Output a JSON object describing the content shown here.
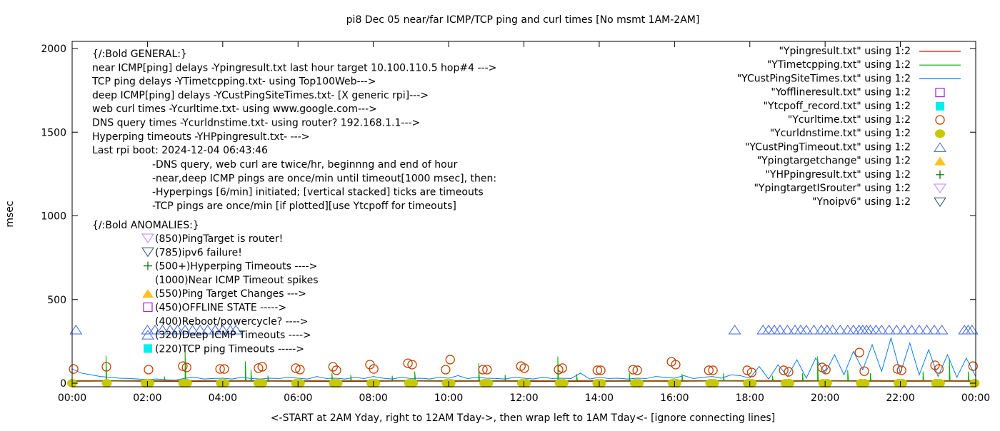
{
  "chart_data": {
    "type": "line",
    "title": "pi8 Dec 05  near/far ICMP/TCP ping and curl times [No msmt 1AM-2AM]",
    "xlabel": "<-START at 2AM Yday, right to 12AM Tday->, then wrap left to 1AM Tday<- [ignore connecting lines]",
    "ylabel": "msec",
    "xlim": [
      0,
      24
    ],
    "ylim": [
      0,
      2000
    ],
    "xticks": [
      "00:00",
      "02:00",
      "04:00",
      "06:00",
      "08:00",
      "10:00",
      "12:00",
      "14:00",
      "16:00",
      "18:00",
      "20:00",
      "22:00",
      "00:00"
    ],
    "yticks": [
      0,
      500,
      1000,
      1500,
      2000
    ],
    "grid": false,
    "legend_placement": "top-right",
    "colors": {
      "red": "#ff0000",
      "green": "#00b000",
      "blue": "#0a7cf0",
      "purple": "#a020f0",
      "cyan": "#00eeee",
      "curl": "#c04000",
      "dns": "#c8c800",
      "custtimeout": "#4169e1",
      "orange": "#ffc020",
      "hp": "#006400",
      "lavender": "#c080ff",
      "navy": "#2f4f6f"
    },
    "series": [
      {
        "name": "\"Ypingresult.txt\" using 1:2",
        "marker": "line",
        "color": "#ff0000",
        "x_step_hours": 1,
        "values": [
          12,
          14,
          12,
          11,
          12,
          13,
          12,
          11,
          12,
          14,
          12,
          13,
          12,
          11,
          12,
          13,
          12,
          14,
          13,
          12,
          14,
          13,
          12,
          13,
          12
        ]
      },
      {
        "name": "\"YTimetcpping.txt\" using 1:2",
        "marker": "line",
        "color": "#00b000",
        "baseline": 16,
        "spikes": [
          [
            0.9,
            165
          ],
          [
            2.45,
            40
          ],
          [
            3.0,
            190
          ],
          [
            4.6,
            130
          ],
          [
            4.75,
            80
          ],
          [
            5.2,
            45
          ],
          [
            6.9,
            60
          ],
          [
            7.4,
            50
          ],
          [
            8.5,
            45
          ],
          [
            9.1,
            70
          ],
          [
            10.8,
            120
          ],
          [
            11.5,
            50
          ],
          [
            12.9,
            160
          ],
          [
            13.4,
            55
          ],
          [
            14.8,
            60
          ],
          [
            16.2,
            55
          ],
          [
            17.3,
            60
          ],
          [
            18.6,
            45
          ],
          [
            19.4,
            60
          ],
          [
            19.8,
            160
          ],
          [
            20.6,
            80
          ],
          [
            21.2,
            60
          ],
          [
            22.6,
            70
          ],
          [
            23.3,
            150
          ],
          [
            23.8,
            70
          ]
        ]
      },
      {
        "name": "\"YCustPingSiteTimes.txt\" using 1:2",
        "marker": "line",
        "color": "#0a7cf0",
        "x_step_hours": 0.25,
        "values": [
          85,
          60,
          50,
          40,
          35,
          30,
          28,
          25,
          22,
          25,
          20,
          18,
          30,
          35,
          25,
          28,
          30,
          25,
          35,
          28,
          25,
          30,
          28,
          35,
          30,
          25,
          40,
          28,
          30,
          25,
          35,
          28,
          40,
          30,
          25,
          35,
          28,
          30,
          25,
          35,
          30,
          45,
          28,
          35,
          30,
          28,
          25,
          35,
          30,
          25,
          35,
          28,
          30,
          28,
          60,
          25,
          35,
          28,
          30,
          25,
          30,
          28,
          40,
          35,
          30,
          45,
          28,
          35,
          40,
          30,
          50,
          45,
          30,
          100,
          25,
          110,
          40,
          140,
          30,
          150,
          60,
          170,
          50,
          190,
          80,
          230,
          70,
          270,
          60,
          240,
          50,
          200,
          40,
          170,
          35,
          150,
          40
        ]
      },
      {
        "name": "\"Yofflineresult.txt\" using 1:2",
        "marker": "open-square",
        "color": "#a020f0",
        "points": []
      },
      {
        "name": "\"Ytcpoff_record.txt\" using 1:2",
        "marker": "filled-square",
        "color": "#00eeee",
        "points": []
      },
      {
        "name": "\"Ycurltime.txt\" using 1:2",
        "marker": "open-circle",
        "color": "#c04000",
        "points": [
          [
            0.04,
            85
          ],
          [
            0.91,
            98
          ],
          [
            2.03,
            81
          ],
          [
            2.94,
            102
          ],
          [
            3.04,
            94
          ],
          [
            3.93,
            85
          ],
          [
            4.04,
            85
          ],
          [
            4.95,
            90
          ],
          [
            5.05,
            98
          ],
          [
            5.94,
            90
          ],
          [
            6.05,
            81
          ],
          [
            6.93,
            98
          ],
          [
            7.02,
            77
          ],
          [
            7.91,
            111
          ],
          [
            8.01,
            85
          ],
          [
            8.92,
            119
          ],
          [
            9.03,
            111
          ],
          [
            9.92,
            81
          ],
          [
            10.04,
            141
          ],
          [
            10.91,
            81
          ],
          [
            11.02,
            81
          ],
          [
            11.92,
            102
          ],
          [
            12.01,
            90
          ],
          [
            12.92,
            81
          ],
          [
            13.02,
            90
          ],
          [
            13.95,
            77
          ],
          [
            14.04,
            77
          ],
          [
            14.9,
            81
          ],
          [
            15.01,
            77
          ],
          [
            15.92,
            128
          ],
          [
            16.03,
            111
          ],
          [
            16.91,
            77
          ],
          [
            17.02,
            77
          ],
          [
            17.93,
            77
          ],
          [
            18.05,
            64
          ],
          [
            18.9,
            77
          ],
          [
            19.03,
            68
          ],
          [
            19.92,
            94
          ],
          [
            20.02,
            81
          ],
          [
            20.91,
            183
          ],
          [
            21.04,
            72
          ],
          [
            21.92,
            85
          ],
          [
            22.03,
            77
          ],
          [
            22.92,
            107
          ],
          [
            23.02,
            85
          ],
          [
            23.93,
            102
          ]
        ]
      },
      {
        "name": "\"Ycurldnstime.txt\" using 1:2",
        "marker": "filled-circle",
        "color": "#c8c800",
        "points": [
          [
            0.0,
            0
          ],
          [
            0.92,
            0
          ],
          [
            1.95,
            0
          ],
          [
            2.05,
            0
          ],
          [
            2.95,
            0
          ],
          [
            3.05,
            0
          ],
          [
            3.95,
            0
          ],
          [
            4.05,
            0
          ],
          [
            4.95,
            0
          ],
          [
            5.05,
            0
          ],
          [
            5.95,
            0
          ],
          [
            6.05,
            0
          ],
          [
            6.95,
            0
          ],
          [
            7.05,
            0
          ],
          [
            7.95,
            0
          ],
          [
            8.05,
            0
          ],
          [
            8.95,
            0
          ],
          [
            9.05,
            0
          ],
          [
            9.95,
            0
          ],
          [
            10.05,
            0
          ],
          [
            10.95,
            0
          ],
          [
            11.05,
            0
          ],
          [
            11.95,
            0
          ],
          [
            12.05,
            0
          ],
          [
            12.95,
            0
          ],
          [
            13.05,
            0
          ],
          [
            13.95,
            0
          ],
          [
            14.05,
            0
          ],
          [
            14.95,
            0
          ],
          [
            15.05,
            0
          ],
          [
            15.95,
            0
          ],
          [
            16.05,
            0
          ],
          [
            16.95,
            0
          ],
          [
            17.05,
            0
          ],
          [
            17.95,
            0
          ],
          [
            18.05,
            0
          ],
          [
            18.95,
            0
          ],
          [
            19.05,
            0
          ],
          [
            19.95,
            0
          ],
          [
            20.05,
            0
          ],
          [
            20.95,
            0
          ],
          [
            21.05,
            0
          ],
          [
            21.95,
            0
          ],
          [
            22.05,
            0
          ],
          [
            22.95,
            0
          ],
          [
            23.05,
            0
          ],
          [
            23.97,
            0
          ]
        ]
      },
      {
        "name": "\"YCustPingTimeout.txt\" using 1:2",
        "marker": "open-triangle-up",
        "color": "#4169e1",
        "y": 320,
        "x": [
          0.1,
          2.0,
          2.2,
          2.4,
          2.6,
          2.8,
          3.0,
          3.2,
          3.4,
          3.6,
          3.8,
          4.0,
          4.2,
          4.35,
          17.6,
          18.35,
          18.5,
          18.65,
          18.8,
          19.0,
          19.2,
          19.35,
          19.5,
          19.7,
          19.9,
          20.05,
          20.2,
          20.4,
          20.6,
          20.75,
          20.9,
          21.0,
          21.1,
          21.2,
          21.35,
          21.5,
          21.7,
          21.9,
          22.1,
          22.3,
          22.5,
          22.7,
          22.9,
          23.1,
          23.7,
          23.8,
          23.9
        ]
      },
      {
        "name": "\"Ypingtargetchange\" using 1:2",
        "marker": "filled-triangle-up",
        "color": "#ffc020",
        "points": []
      },
      {
        "name": "\"YHPpingresult.txt\" using 1:2",
        "marker": "plus",
        "color": "#006400",
        "points": []
      },
      {
        "name": "\"YpingtargetISrouter\" using 1:2",
        "marker": "open-triangle-down",
        "color": "#c080ff",
        "points": []
      },
      {
        "name": "\"Ynoipv6\" using 1:2",
        "marker": "open-triangle-down",
        "color": "#2f4f6f",
        "points": []
      }
    ],
    "annotations": {
      "general": [
        "{/:Bold GENERAL:}",
        "near ICMP[ping] delays -Ypingresult.txt last hour target 10.100.110.5 hop#4 --->",
        "TCP ping delays -YTimetcpping.txt- using Top100Web--->",
        "deep ICMP[ping] delays -YCustPingSiteTimes.txt- [X generic rpi]--->",
        "web curl times -Ycurltime.txt- using www.google.com--->",
        "DNS query times -Ycurldnstime.txt- using router? 192.168.1.1--->",
        "Hyperping timeouts -YHPpingresult.txt- --->",
        "Last rpi boot: 2024-12-04 06:43:46"
      ],
      "notes": [
        "-DNS query, web curl are twice/hr, beginnng and end of hour",
        "-near,deep ICMP pings are once/min until timeout[1000 msec], then:",
        "  -Hyperpings [6/min] initiated; [vertical stacked] ticks are timeouts",
        "-TCP pings are once/min [if plotted][use Ytcpoff for timeouts]"
      ],
      "anomalies_title": "{/:Bold ANOMALIES:}",
      "anomalies": [
        {
          "marker": "open-triangle-down",
          "color": "#c080ff",
          "text": "(850)PingTarget is router!"
        },
        {
          "marker": "open-triangle-down",
          "color": "#2f4f6f",
          "text": "(785)ipv6 failure!"
        },
        {
          "marker": "plus",
          "color": "#006400",
          "text": "(500+)Hyperping Timeouts ---->"
        },
        {
          "marker": "none",
          "color": "",
          "text": "(1000)Near ICMP Timeout spikes"
        },
        {
          "marker": "filled-triangle-up",
          "color": "#ffc020",
          "text": "(550)Ping Target Changes --->"
        },
        {
          "marker": "open-square",
          "color": "#a020f0",
          "text": "(450)OFFLINE STATE ----->"
        },
        {
          "marker": "none",
          "color": "",
          "text": "(400)Reboot/powercycle? ---->"
        },
        {
          "marker": "open-triangle-up",
          "color": "#4169e1",
          "text": "(320)Deep ICMP Timeouts ---->"
        },
        {
          "marker": "filled-square",
          "color": "#00eeee",
          "text": "(220)TCP ping Timeouts ----->"
        }
      ]
    }
  }
}
